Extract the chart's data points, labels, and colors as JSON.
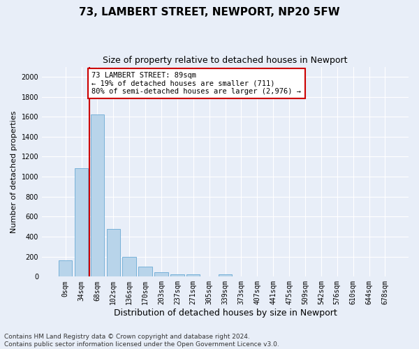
{
  "title": "73, LAMBERT STREET, NEWPORT, NP20 5FW",
  "subtitle": "Size of property relative to detached houses in Newport",
  "xlabel": "Distribution of detached houses by size in Newport",
  "ylabel": "Number of detached properties",
  "categories": [
    "0sqm",
    "34sqm",
    "68sqm",
    "102sqm",
    "136sqm",
    "170sqm",
    "203sqm",
    "237sqm",
    "271sqm",
    "305sqm",
    "339sqm",
    "373sqm",
    "407sqm",
    "441sqm",
    "475sqm",
    "509sqm",
    "542sqm",
    "576sqm",
    "610sqm",
    "644sqm",
    "678sqm"
  ],
  "values": [
    165,
    1085,
    1625,
    480,
    200,
    100,
    45,
    25,
    20,
    0,
    20,
    0,
    0,
    0,
    0,
    0,
    0,
    0,
    0,
    0,
    0
  ],
  "bar_color": "#b8d4ea",
  "bar_edge_color": "#6aaad4",
  "vline_color": "#cc0000",
  "ylim": [
    0,
    2100
  ],
  "yticks": [
    0,
    200,
    400,
    600,
    800,
    1000,
    1200,
    1400,
    1600,
    1800,
    2000
  ],
  "annotation_text": "73 LAMBERT STREET: 89sqm\n← 19% of detached houses are smaller (711)\n80% of semi-detached houses are larger (2,976) →",
  "annotation_box_facecolor": "white",
  "annotation_box_edgecolor": "#cc0000",
  "footer_line1": "Contains HM Land Registry data © Crown copyright and database right 2024.",
  "footer_line2": "Contains public sector information licensed under the Open Government Licence v3.0.",
  "bg_color": "#e8eef8",
  "grid_color": "white",
  "title_fontsize": 11,
  "subtitle_fontsize": 9,
  "ylabel_fontsize": 8,
  "xlabel_fontsize": 9,
  "tick_fontsize": 7,
  "annot_fontsize": 7.5,
  "footer_fontsize": 6.5
}
